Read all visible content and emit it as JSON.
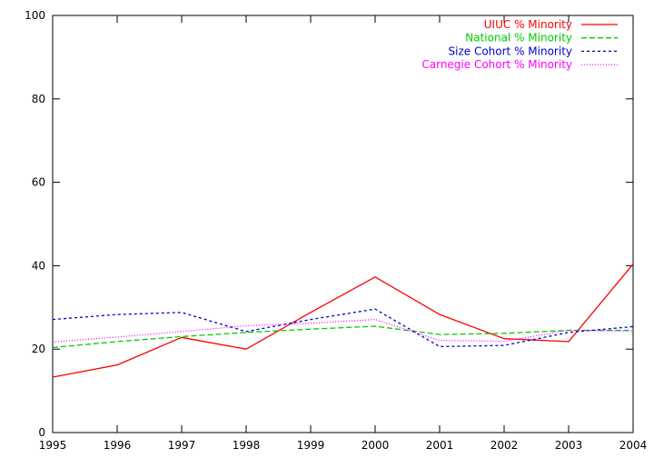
{
  "chart_data": {
    "type": "line",
    "x": [
      1995,
      1996,
      1997,
      1998,
      1999,
      2000,
      2001,
      2002,
      2003,
      2004
    ],
    "xlim": [
      1995,
      2004
    ],
    "ylim": [
      0,
      100
    ],
    "xticks": [
      1995,
      1996,
      1997,
      1998,
      1999,
      2000,
      2001,
      2002,
      2003,
      2004
    ],
    "yticks": [
      0,
      20,
      40,
      60,
      80,
      100
    ],
    "grid": false,
    "legend_position": "top-right",
    "series": [
      {
        "name": "UIUC % Minority",
        "color": "#ff0000",
        "dash": "solid",
        "values": [
          13.3,
          16.2,
          22.8,
          20.0,
          28.8,
          37.3,
          28.3,
          22.5,
          21.8,
          40.4
        ]
      },
      {
        "name": "National % Minority",
        "color": "#00cc00",
        "dash": "dashed",
        "values": [
          20.4,
          21.8,
          23.0,
          24.0,
          24.8,
          25.5,
          23.5,
          23.8,
          24.5,
          24.5
        ]
      },
      {
        "name": "Size Cohort % Minority",
        "color": "#0000cc",
        "dash": "dotted",
        "values": [
          27.1,
          28.3,
          28.8,
          24.2,
          27.1,
          29.6,
          20.6,
          20.9,
          24.0,
          25.4
        ]
      },
      {
        "name": "Carnegie Cohort % Minority",
        "color": "#ff00ff",
        "dash": "fine-dotted",
        "values": [
          21.7,
          22.9,
          24.2,
          25.6,
          26.2,
          27.1,
          22.1,
          21.9,
          24.5,
          24.3
        ]
      }
    ]
  }
}
